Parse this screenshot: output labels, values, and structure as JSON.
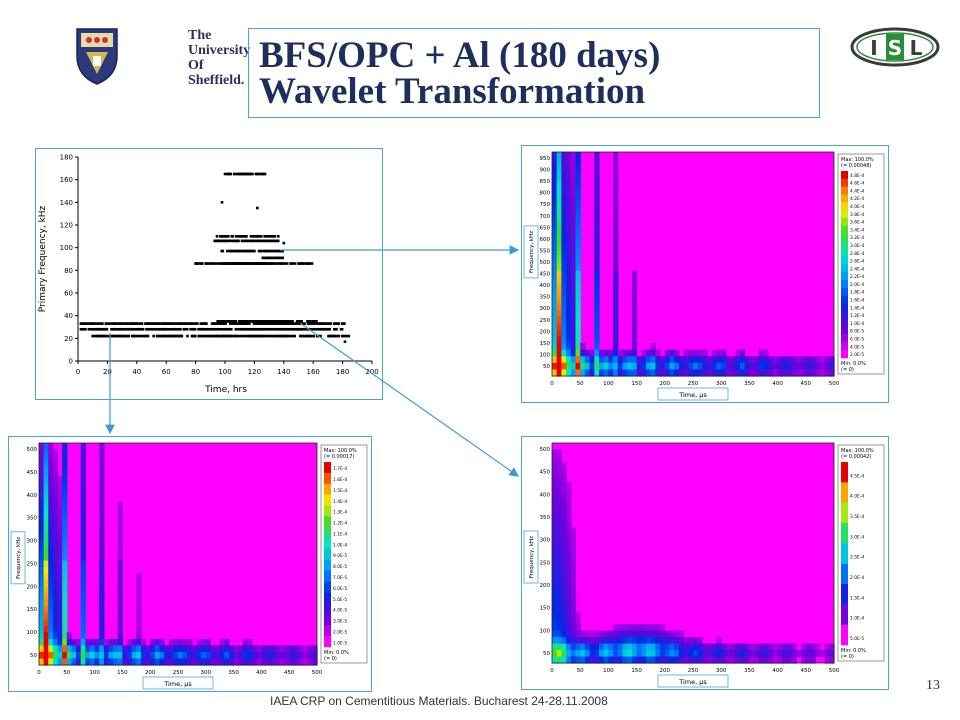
{
  "slide": {
    "title_line1": "BFS/OPC + Al (180 days)",
    "title_line2": "Wavelet Transformation",
    "footer": "IAEA CRP on Cementitious Materials. Bucharest 24-28.11.2008",
    "page_number": "13"
  },
  "logos": {
    "university": [
      "The",
      "University",
      "Of",
      "Sheffield."
    ],
    "isl": {
      "letters": [
        "I",
        "S",
        "L"
      ],
      "color": "#2e8b3a"
    }
  },
  "scatter": {
    "xlabel": "Time, hrs",
    "ylabel": "Primary Frequency, kHz",
    "xticks": [
      "0",
      "20",
      "40",
      "60",
      "80",
      "100",
      "120",
      "140",
      "160",
      "180",
      "200"
    ],
    "yticks": [
      "0",
      "20",
      "40",
      "60",
      "80",
      "100",
      "120",
      "140",
      "160",
      "180"
    ]
  },
  "wavelets": [
    {
      "id": "top-right",
      "xlabel": "Time, µs",
      "ylabel": "Frequency, kHz",
      "xticks": [
        "0",
        "50",
        "100",
        "150",
        "200",
        "250",
        "300",
        "350",
        "400",
        "450",
        "500"
      ],
      "yticks": [
        "50",
        "100",
        "150",
        "200",
        "250",
        "300",
        "350",
        "400",
        "450",
        "500",
        "550",
        "600",
        "650",
        "700",
        "750",
        "800",
        "850",
        "900",
        "950"
      ],
      "legend_max": "Max: 100.0%",
      "legend_max_val": "(= 0.00048)",
      "legend_min": "Min: 0.0%",
      "legend_min_val": "(= 0)",
      "scale": [
        "4.8E-4",
        "4.6E-4",
        "4.4E-4",
        "4.2E-4",
        "4.0E-4",
        "3.8E-4",
        "3.6E-4",
        "3.4E-4",
        "3.2E-4",
        "3.0E-4",
        "2.8E-4",
        "2.6E-4",
        "2.4E-4",
        "2.2E-4",
        "2.0E-4",
        "1.8E-4",
        "1.6E-4",
        "1.4E-4",
        "1.2E-4",
        "1.0E-4",
        "8.0E-5",
        "6.0E-5",
        "4.0E-5",
        "2.0E-5"
      ]
    },
    {
      "id": "bottom-left",
      "xlabel": "Time, µs",
      "ylabel": "Frequency, kHz",
      "xticks": [
        "0",
        "50",
        "100",
        "150",
        "200",
        "250",
        "300",
        "350",
        "400",
        "450",
        "500"
      ],
      "yticks": [
        "50",
        "100",
        "150",
        "200",
        "250",
        "300",
        "350",
        "400",
        "450",
        "500"
      ],
      "legend_max": "Max: 100.0%",
      "legend_max_val": "(= 0.00017)",
      "legend_min": "Min: 0.0%",
      "legend_min_val": "(= 0)",
      "scale": [
        "1.7E-4",
        "1.6E-4",
        "1.5E-4",
        "1.4E-4",
        "1.3E-4",
        "1.2E-4",
        "1.1E-4",
        "1.0E-4",
        "9.0E-5",
        "8.0E-5",
        "7.0E-5",
        "6.0E-5",
        "5.0E-5",
        "4.0E-5",
        "3.0E-5",
        "2.0E-5",
        "1.0E-5"
      ]
    },
    {
      "id": "bottom-right",
      "xlabel": "Time, µs",
      "ylabel": "Frequency, kHz",
      "xticks": [
        "0",
        "50",
        "100",
        "150",
        "200",
        "250",
        "300",
        "350",
        "400",
        "450",
        "500"
      ],
      "yticks": [
        "50",
        "100",
        "150",
        "200",
        "250",
        "300",
        "350",
        "400",
        "450",
        "500"
      ],
      "legend_max": "Max: 100.0%",
      "legend_max_val": "(= 0.00042)",
      "legend_min": "Min: 0.0%",
      "legend_min_val": "(= 0)",
      "scale": [
        "4.5E-4",
        "4.0E-4",
        "3.5E-4",
        "3.0E-4",
        "2.5E-4",
        "2.0E-4",
        "1.5E-4",
        "1.0E-4",
        "5.0E-5"
      ]
    }
  ],
  "chart_data": {
    "type": "scatter",
    "title": "",
    "xlabel": "Time, hrs",
    "ylabel": "Primary Frequency, kHz",
    "xlim": [
      0,
      200
    ],
    "ylim": [
      0,
      180
    ],
    "clusters": [
      {
        "x_from": 2,
        "x_to": 182,
        "y": 33
      },
      {
        "x_from": 2,
        "x_to": 182,
        "y": 28
      },
      {
        "x_from": 95,
        "x_to": 163,
        "y": 35
      },
      {
        "x_from": 100,
        "x_to": 128,
        "y": 165
      },
      {
        "x_from": 93,
        "x_to": 137,
        "y": 110
      },
      {
        "x_from": 93,
        "x_to": 137,
        "y": 106
      },
      {
        "x_from": 97,
        "x_to": 140,
        "y": 97
      },
      {
        "x_from": 125,
        "x_to": 140,
        "y": 91
      },
      {
        "x_from": 98,
        "x_to": 130,
        "y": 86
      },
      {
        "x_from": 80,
        "x_to": 160,
        "y": 86
      },
      {
        "x_from": 140,
        "x_to": 140,
        "y": 104
      },
      {
        "x_from": 98,
        "x_to": 98,
        "y": 140
      },
      {
        "x_from": 122,
        "x_to": 122,
        "y": 135
      },
      {
        "x_from": 10,
        "x_to": 185,
        "y": 22
      },
      {
        "x_from": 180,
        "x_to": 184,
        "y": 17
      }
    ]
  }
}
